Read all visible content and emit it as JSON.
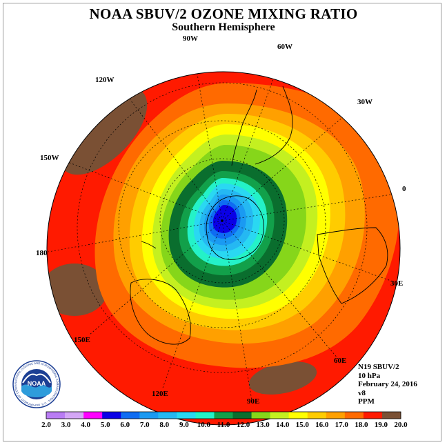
{
  "header": {
    "title": "NOAA SBUV/2 OZONE MIXING RATIO",
    "subtitle": "Southern Hemisphere"
  },
  "map": {
    "projection": "polar stereographic, south pole",
    "longitude_labels": [
      "90W",
      "60W",
      "30W",
      "0",
      "30E",
      "60E",
      "90E",
      "120E",
      "150E",
      "180",
      "150W",
      "120W"
    ],
    "field": "ozone mixing ratio",
    "min_region": "blue core near south pole",
    "colors": {
      "background_red": "#ff1a00",
      "low_blue": "#0010ff",
      "high_brown": "#7a5034"
    }
  },
  "info": {
    "satellite": "N19 SBUV/2",
    "level": "10 hPa",
    "date": "February 24, 2016",
    "version": "v8",
    "units": "PPM"
  },
  "logo": {
    "text": "NOAA",
    "ring_text": "NATIONAL OCEANIC AND ATMOSPHERIC ADMINISTRATION · U.S. DEPARTMENT OF COMMERCE"
  },
  "colorbar": {
    "labels": [
      "2.0",
      "3.0",
      "4.0",
      "5.0",
      "6.0",
      "7.0",
      "8.0",
      "9.0",
      "10.0",
      "11.0",
      "12.0",
      "13.0",
      "14.0",
      "15.0",
      "16.0",
      "17.0",
      "18.0",
      "19.0",
      "20.0"
    ],
    "colors": [
      "#b97cf4",
      "#d4a6f6",
      "#ff00ff",
      "#0a00e6",
      "#0f6cf2",
      "#1a9af2",
      "#25b8f2",
      "#2ad8f2",
      "#24f2c8",
      "#12a04a",
      "#0a6e2e",
      "#86d61a",
      "#c4f020",
      "#ffff00",
      "#ffcc00",
      "#ffa000",
      "#ff6a00",
      "#ff1a00",
      "#7a5034"
    ]
  }
}
